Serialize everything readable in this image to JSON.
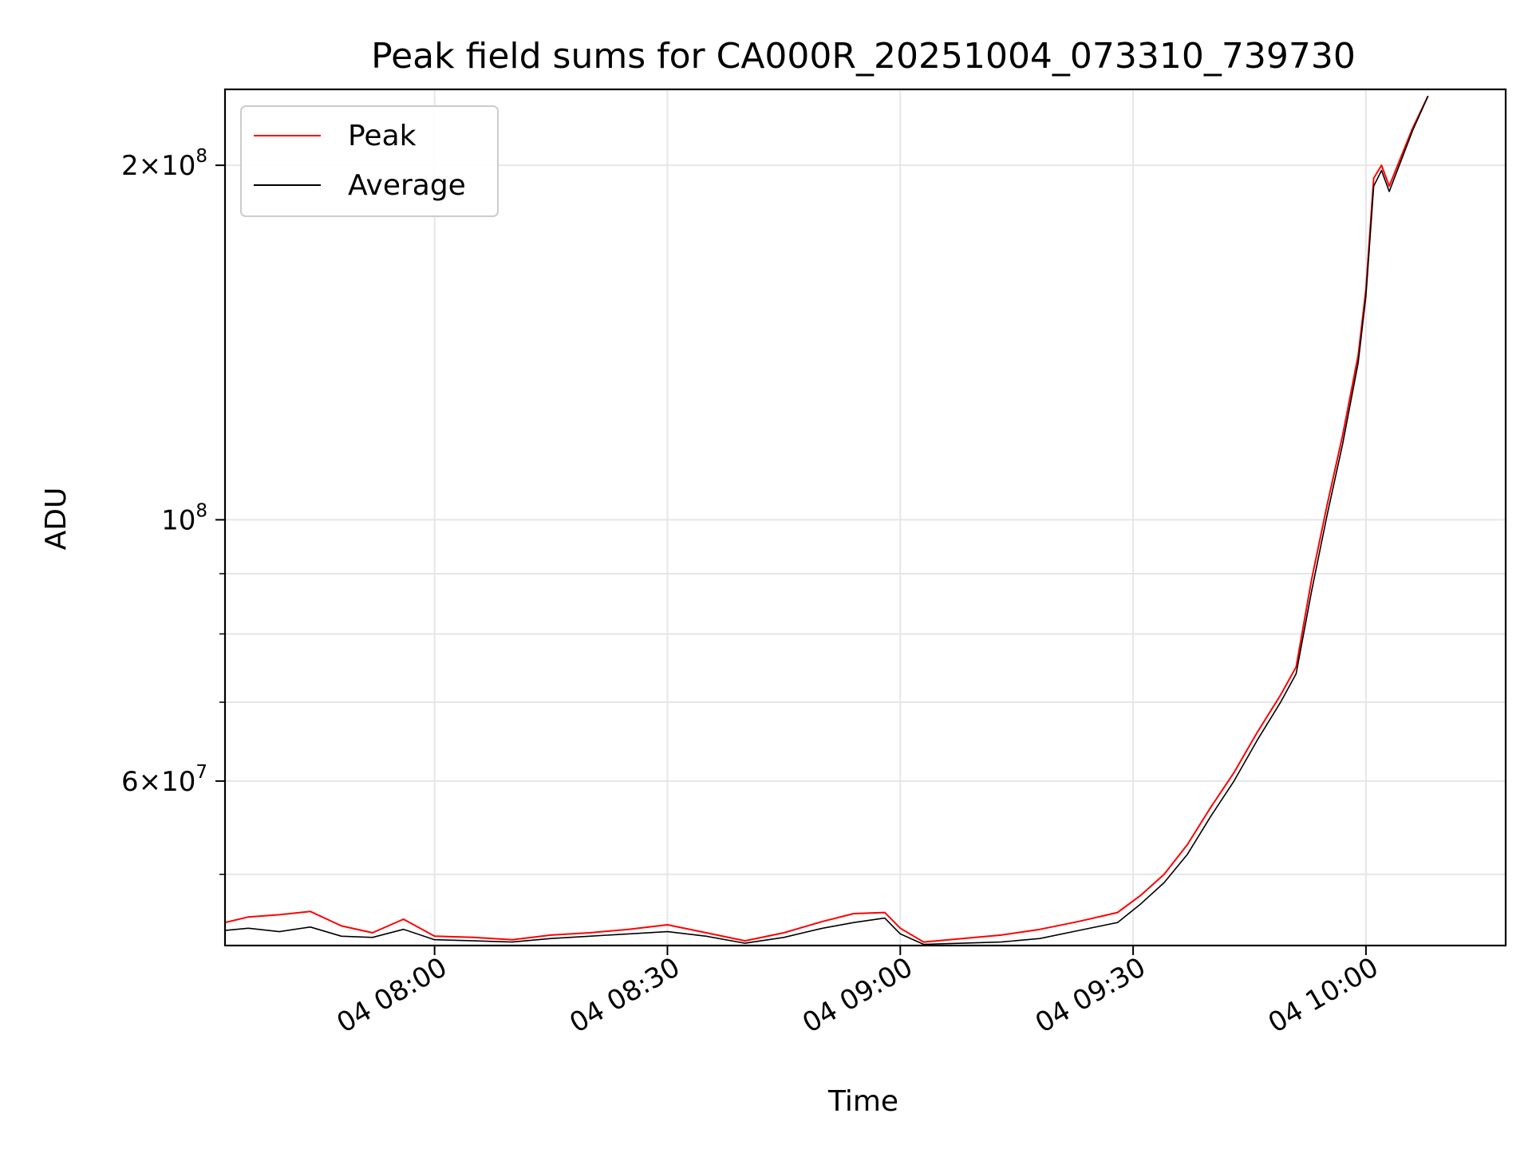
{
  "chart_data": {
    "type": "line",
    "title": "Peak field sums for CA000R_20251004_073310_739730",
    "xlabel": "Time",
    "ylabel": "ADU",
    "y_scale": "log",
    "ylim": [
      43500000,
      232000000
    ],
    "xlim": [
      "2025-10-04 07:33",
      "2025-10-04 10:18"
    ],
    "x_ticks": [
      {
        "time": "2025-10-04 08:00",
        "label": "04 08:00"
      },
      {
        "time": "2025-10-04 08:30",
        "label": "04 08:30"
      },
      {
        "time": "2025-10-04 09:00",
        "label": "04 09:00"
      },
      {
        "time": "2025-10-04 09:30",
        "label": "04 09:30"
      },
      {
        "time": "2025-10-04 10:00",
        "label": "04 10:00"
      }
    ],
    "y_major_ticks": [
      {
        "value": 60000000,
        "mantissa": "6",
        "exp": "7"
      },
      {
        "value": 100000000,
        "mantissa": "",
        "exp": "8"
      },
      {
        "value": 200000000,
        "mantissa": "2",
        "exp": "8"
      }
    ],
    "y_minor_ticks": [
      50000000,
      70000000,
      80000000,
      90000000
    ],
    "grid": true,
    "legend_position": "top-left",
    "series": [
      {
        "name": "Peak",
        "color": "#ff0000",
        "x": [
          "2025-10-04 07:33",
          "2025-10-04 07:36",
          "2025-10-04 07:40",
          "2025-10-04 07:44",
          "2025-10-04 07:48",
          "2025-10-04 07:52",
          "2025-10-04 07:56",
          "2025-10-04 08:00",
          "2025-10-04 08:05",
          "2025-10-04 08:10",
          "2025-10-04 08:15",
          "2025-10-04 08:20",
          "2025-10-04 08:25",
          "2025-10-04 08:30",
          "2025-10-04 08:35",
          "2025-10-04 08:40",
          "2025-10-04 08:45",
          "2025-10-04 08:50",
          "2025-10-04 08:54",
          "2025-10-04 08:58",
          "2025-10-04 09:00",
          "2025-10-04 09:03",
          "2025-10-04 09:08",
          "2025-10-04 09:13",
          "2025-10-04 09:18",
          "2025-10-04 09:23",
          "2025-10-04 09:28",
          "2025-10-04 09:31",
          "2025-10-04 09:34",
          "2025-10-04 09:37",
          "2025-10-04 09:40",
          "2025-10-04 09:43",
          "2025-10-04 09:46",
          "2025-10-04 09:49",
          "2025-10-04 09:51",
          "2025-10-04 09:53",
          "2025-10-04 09:55",
          "2025-10-04 09:57",
          "2025-10-04 09:59",
          "2025-10-04 10:00",
          "2025-10-04 10:01",
          "2025-10-04 10:02",
          "2025-10-04 10:03",
          "2025-10-04 10:06",
          "2025-10-04 10:08"
        ],
        "values": [
          45500000,
          46000000,
          46200000,
          46500000,
          45200000,
          44600000,
          45800000,
          44300000,
          44200000,
          44000000,
          44400000,
          44600000,
          44900000,
          45300000,
          44600000,
          43900000,
          44600000,
          45600000,
          46300000,
          46400000,
          45000000,
          43800000,
          44100000,
          44400000,
          44900000,
          45600000,
          46400000,
          48000000,
          50000000,
          53000000,
          57000000,
          61000000,
          66000000,
          71000000,
          75000000,
          89000000,
          103000000,
          118000000,
          138000000,
          157000000,
          195000000,
          200000000,
          192000000,
          215000000,
          229000000
        ]
      },
      {
        "name": "Average",
        "color": "#000000",
        "x": [
          "2025-10-04 07:33",
          "2025-10-04 07:36",
          "2025-10-04 07:40",
          "2025-10-04 07:44",
          "2025-10-04 07:48",
          "2025-10-04 07:52",
          "2025-10-04 07:56",
          "2025-10-04 08:00",
          "2025-10-04 08:05",
          "2025-10-04 08:10",
          "2025-10-04 08:15",
          "2025-10-04 08:20",
          "2025-10-04 08:25",
          "2025-10-04 08:30",
          "2025-10-04 08:35",
          "2025-10-04 08:40",
          "2025-10-04 08:45",
          "2025-10-04 08:50",
          "2025-10-04 08:54",
          "2025-10-04 08:58",
          "2025-10-04 09:00",
          "2025-10-04 09:03",
          "2025-10-04 09:08",
          "2025-10-04 09:13",
          "2025-10-04 09:18",
          "2025-10-04 09:23",
          "2025-10-04 09:28",
          "2025-10-04 09:31",
          "2025-10-04 09:34",
          "2025-10-04 09:37",
          "2025-10-04 09:40",
          "2025-10-04 09:43",
          "2025-10-04 09:46",
          "2025-10-04 09:49",
          "2025-10-04 09:51",
          "2025-10-04 09:53",
          "2025-10-04 09:55",
          "2025-10-04 09:57",
          "2025-10-04 09:59",
          "2025-10-04 10:00",
          "2025-10-04 10:01",
          "2025-10-04 10:02",
          "2025-10-04 10:03",
          "2025-10-04 10:06",
          "2025-10-04 10:08"
        ],
        "values": [
          44800000,
          45000000,
          44700000,
          45100000,
          44300000,
          44200000,
          44900000,
          44000000,
          43900000,
          43800000,
          44100000,
          44300000,
          44500000,
          44700000,
          44300000,
          43700000,
          44200000,
          45000000,
          45500000,
          45900000,
          44500000,
          43600000,
          43700000,
          43800000,
          44100000,
          44800000,
          45500000,
          47200000,
          49200000,
          52000000,
          56000000,
          60000000,
          65000000,
          70000000,
          74000000,
          87000000,
          101000000,
          116000000,
          136000000,
          155000000,
          192000000,
          198000000,
          190000000,
          214000000,
          229000000
        ]
      }
    ]
  }
}
